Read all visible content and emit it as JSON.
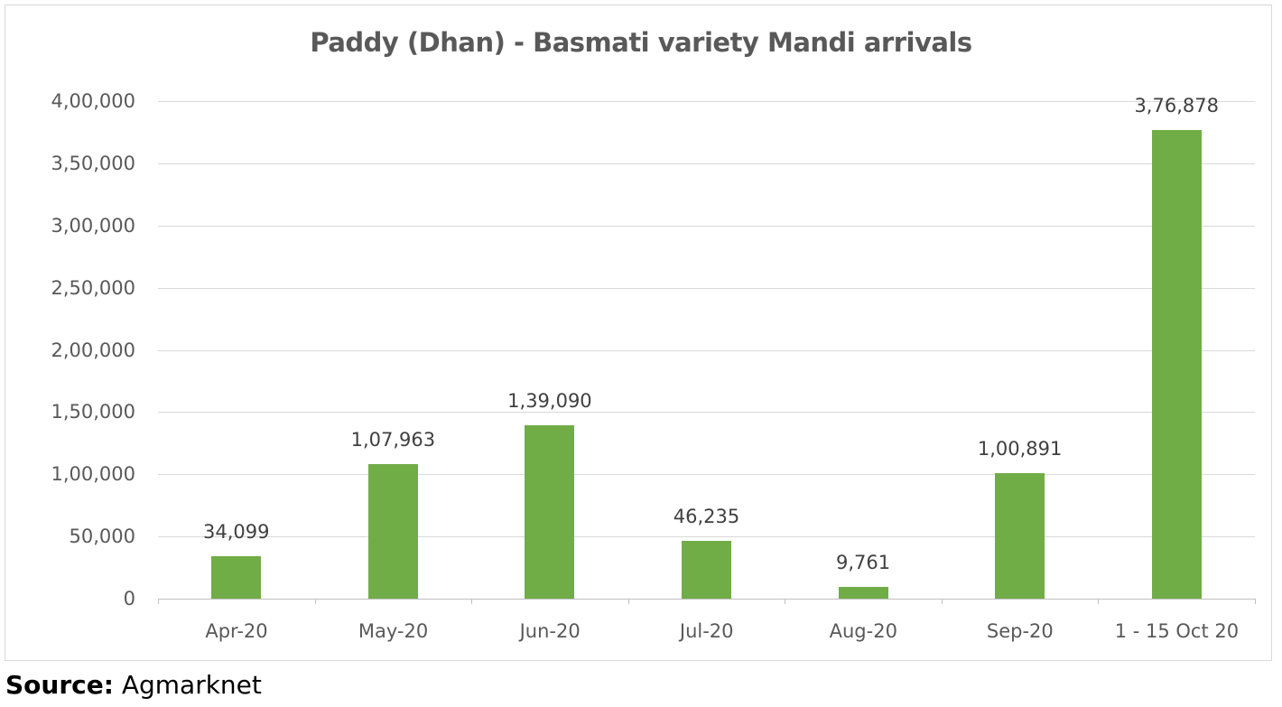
{
  "chart_data": {
    "type": "bar",
    "title": "Paddy (Dhan) - Basmati variety Mandi arrivals",
    "xlabel": "",
    "ylabel": "",
    "categories": [
      "Apr-20",
      "May-20",
      "Jun-20",
      "Jul-20",
      "Aug-20",
      "Sep-20",
      "1 - 15 Oct 20"
    ],
    "values": [
      34099,
      107963,
      139090,
      46235,
      9761,
      100891,
      376878
    ],
    "value_labels": [
      "34,099",
      "1,07,963",
      "1,39,090",
      "46,235",
      "9,761",
      "1,00,891",
      "3,76,878"
    ],
    "ylim": [
      0,
      400000
    ],
    "yticks": [
      0,
      50000,
      100000,
      150000,
      200000,
      250000,
      300000,
      350000,
      400000
    ],
    "ytick_labels": [
      "0",
      "50,000",
      "1,00,000",
      "1,50,000",
      "2,00,000",
      "2,50,000",
      "3,00,000",
      "3,50,000",
      "4,00,000"
    ],
    "grid": true,
    "legend": null,
    "bar_color": "#70ad47"
  },
  "source": {
    "label": "Source:",
    "value": "Agmarknet"
  }
}
